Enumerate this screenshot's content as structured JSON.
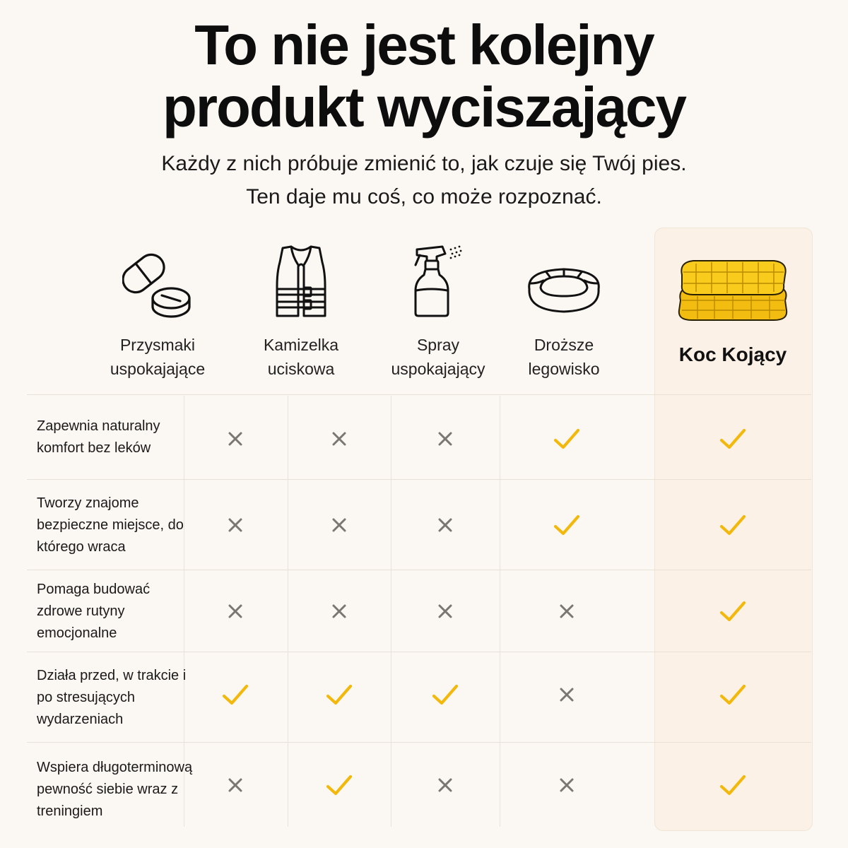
{
  "header": {
    "title_line1": "To nie jest kolejny",
    "title_line2": "produkt wyciszający",
    "subtitle_line1": "Każdy z nich próbuje zmienić to, jak czuje się Twój pies.",
    "subtitle_line2": "Ten daje mu coś, co może rozpoznać."
  },
  "columns": [
    {
      "label": "Przysmaki uspokajające",
      "icon": "pills-icon"
    },
    {
      "label": "Kamizelka uciskowa",
      "icon": "vest-icon"
    },
    {
      "label": "Spray uspokajający",
      "icon": "spray-bottle-icon"
    },
    {
      "label": "Droższe legowisko",
      "icon": "dog-bed-icon"
    },
    {
      "label": "Koc Kojący",
      "icon": "blanket-icon",
      "highlighted": true
    }
  ],
  "rows": [
    {
      "label": "Zapewnia naturalny komfort bez leków",
      "marks": [
        "cross",
        "cross",
        "cross",
        "check",
        "check"
      ]
    },
    {
      "label": "Tworzy znajome bezpieczne miejsce, do którego wraca",
      "marks": [
        "cross",
        "cross",
        "cross",
        "check",
        "check"
      ]
    },
    {
      "label": "Pomaga budować zdrowe rutyny emocjonalne",
      "marks": [
        "cross",
        "cross",
        "cross",
        "cross",
        "check"
      ]
    },
    {
      "label": "Działa przed, w trakcie i po stresujących wydarzeniach",
      "marks": [
        "check",
        "check",
        "check",
        "cross",
        "check"
      ]
    },
    {
      "label": "Wspiera długoterminową pewność siebie wraz z treningiem",
      "marks": [
        "cross",
        "check",
        "cross",
        "cross",
        "check"
      ]
    }
  ],
  "colors": {
    "background": "#fbf7f2",
    "check": "#f3b80c",
    "cross": "#7a7672",
    "highlight_column": "#fbf1e6",
    "blanket": "#f5c518"
  }
}
